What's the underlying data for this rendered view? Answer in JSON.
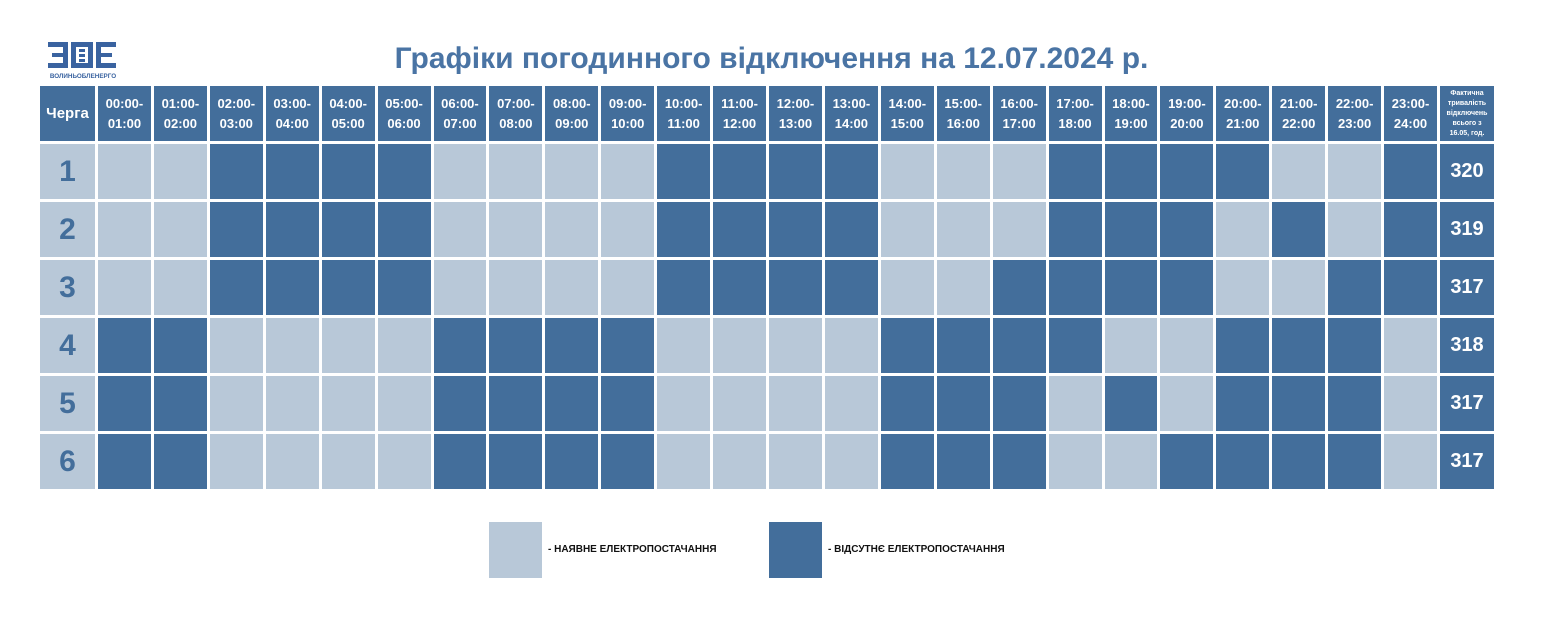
{
  "logo": {
    "text": "ВОЛИНЬОБЛЕНЕРГО",
    "mark": "ЗОЕ"
  },
  "title": "Графіки погодинного відключення на 12.07.2024 р.",
  "colors": {
    "available": "#b8c8d8",
    "outage": "#436e9b",
    "title": "#4a74a4"
  },
  "table": {
    "queue_header": "Черга",
    "total_header": "Фактична тривалість відключень всього з 16.05, год.",
    "hours": [
      "00:00-01:00",
      "01:00-02:00",
      "02:00-03:00",
      "03:00-04:00",
      "04:00-05:00",
      "05:00-06:00",
      "06:00-07:00",
      "07:00-08:00",
      "08:00-09:00",
      "09:00-10:00",
      "10:00-11:00",
      "11:00-12:00",
      "12:00-13:00",
      "13:00-14:00",
      "14:00-15:00",
      "15:00-16:00",
      "16:00-17:00",
      "17:00-18:00",
      "18:00-19:00",
      "19:00-20:00",
      "20:00-21:00",
      "21:00-22:00",
      "22:00-23:00",
      "23:00-24:00"
    ],
    "rows": [
      {
        "queue": "1",
        "outage": "001111000011110001111001",
        "total": "320"
      },
      {
        "queue": "2",
        "outage": "001111000011110001110101",
        "total": "319"
      },
      {
        "queue": "3",
        "outage": "001111000011110011110011",
        "total": "317"
      },
      {
        "queue": "4",
        "outage": "110000111100001111001110",
        "total": "318"
      },
      {
        "queue": "5",
        "outage": "110000111100001110101110",
        "total": "317"
      },
      {
        "queue": "6",
        "outage": "110000111100001110011110",
        "total": "317"
      }
    ]
  },
  "legend": {
    "available": "- НАЯВНЕ ЕЛЕКТРОПОСТАЧАННЯ",
    "outage": "- ВІДСУТНЄ ЕЛЕКТРОПОСТАЧАННЯ"
  }
}
